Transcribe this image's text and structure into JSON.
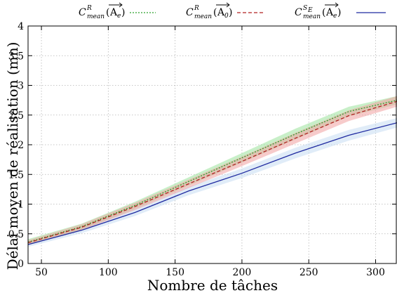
{
  "chart_data": {
    "type": "line",
    "title": "",
    "xlabel": "Nombre de tâches",
    "ylabel": "Délai moyen de réalisation (mn)",
    "xlim": [
      40,
      316
    ],
    "ylim": [
      0,
      4
    ],
    "xticks": [
      "50",
      "100",
      "150",
      "200",
      "250",
      "300"
    ],
    "xtick_values": [
      50,
      100,
      150,
      200,
      250,
      300
    ],
    "yticks": [
      "0",
      "0.5",
      "1",
      "1.5",
      "2",
      "2.5",
      "3",
      "3.5",
      "4"
    ],
    "ytick_values": [
      0,
      0.5,
      1,
      1.5,
      2,
      2.5,
      3,
      3.5,
      4
    ],
    "grid": true,
    "legend_position": "top",
    "series": [
      {
        "name": "C^R_mean(A_e)",
        "legend": {
          "base": "C",
          "sup": "R",
          "sub": "mean",
          "arg": "A",
          "arg_sub": "e"
        },
        "style": "dotted",
        "color": "#2ca02c",
        "band_color": "#9be29b",
        "x": [
          40,
          80,
          120,
          160,
          200,
          240,
          280,
          316
        ],
        "y": [
          0.36,
          0.62,
          0.98,
          1.38,
          1.78,
          2.18,
          2.56,
          2.75
        ],
        "band": [
          0.05,
          0.05,
          0.06,
          0.07,
          0.08,
          0.09,
          0.08,
          0.07
        ]
      },
      {
        "name": "C^R_mean(A_0)",
        "legend": {
          "base": "C",
          "sup": "R",
          "sub": "mean",
          "arg": "A",
          "arg_sub": "0"
        },
        "style": "dashed",
        "color": "#b22222",
        "band_color": "#f0a0a0",
        "x": [
          40,
          80,
          120,
          160,
          200,
          240,
          280,
          316
        ],
        "y": [
          0.35,
          0.61,
          0.96,
          1.34,
          1.72,
          2.11,
          2.49,
          2.73
        ],
        "band": [
          0.04,
          0.05,
          0.06,
          0.07,
          0.08,
          0.09,
          0.09,
          0.09
        ]
      },
      {
        "name": "C^SE_mean(A_e)",
        "legend": {
          "base": "C",
          "sup": "S",
          "sup_sub": "E",
          "sub": "mean",
          "arg": "A",
          "arg_sub": "e"
        },
        "style": "solid",
        "color": "#1f2aa0",
        "band_color": "#c7dcf3",
        "x": [
          40,
          80,
          120,
          160,
          200,
          240,
          280,
          316
        ],
        "y": [
          0.32,
          0.56,
          0.86,
          1.22,
          1.52,
          1.86,
          2.16,
          2.37
        ],
        "band": [
          0.04,
          0.05,
          0.06,
          0.07,
          0.08,
          0.09,
          0.09,
          0.08
        ]
      }
    ]
  }
}
